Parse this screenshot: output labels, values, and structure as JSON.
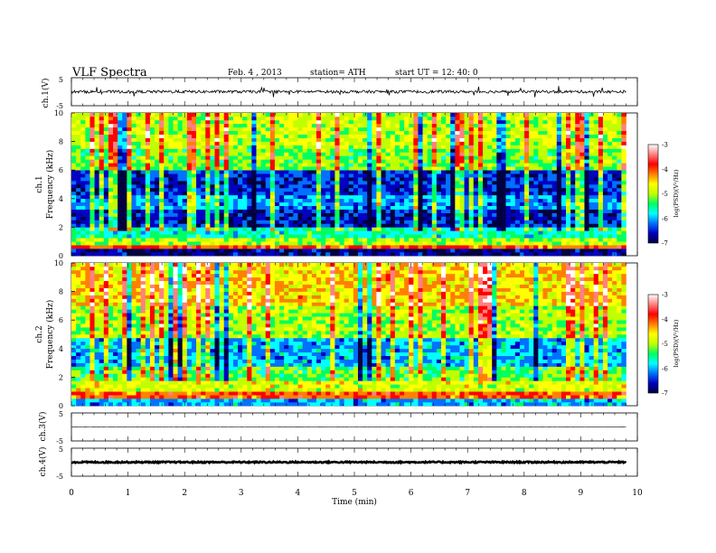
{
  "header": {
    "title": "VLF  Spectra",
    "date": "Feb. 4  , 2013",
    "station": "station= ATH",
    "start": "start  UT  =    12: 40: 0"
  },
  "chart_data": [
    {
      "type": "line",
      "panel": "ch1-waveform",
      "ylabel": "ch.1(V)",
      "ylim": [
        -5,
        5
      ],
      "yticks": [
        "5",
        "-5"
      ],
      "series": [
        {
          "mean": 0,
          "amplitude": 0.5,
          "color": "#000000"
        }
      ]
    },
    {
      "type": "heatmap",
      "panel": "ch1-spectrogram",
      "ylabel_top": "ch.1",
      "ylabel": "Frequency  (kHz)",
      "ylim": [
        0,
        10
      ],
      "yticks": [
        "0",
        "2",
        "4",
        "6",
        "8",
        "10"
      ],
      "colorbar": {
        "label": "log(PSD)(V²/Hz)",
        "range": [
          -7,
          -3
        ],
        "ticks": [
          "-3",
          "-4",
          "-5",
          "-6",
          "-7"
        ],
        "colors": [
          "#000040",
          "#0000c0",
          "#0070ff",
          "#00ffff",
          "#00ff60",
          "#c0ff00",
          "#ffff00",
          "#ff8000",
          "#ff0000",
          "#ff8080",
          "#ffffff"
        ]
      },
      "bands": [
        {
          "f": [
            0.0,
            0.3
          ],
          "logpsd": -6.8
        },
        {
          "f": [
            0.3,
            0.7
          ],
          "logpsd": -4.0
        },
        {
          "f": [
            0.7,
            1.2
          ],
          "logpsd": -5.0
        },
        {
          "f": [
            1.2,
            2.0
          ],
          "logpsd": -5.6
        },
        {
          "f": [
            2.0,
            3.2
          ],
          "logpsd": -6.6
        },
        {
          "f": [
            3.2,
            4.2
          ],
          "logpsd": -6.1
        },
        {
          "f": [
            4.2,
            5.9
          ],
          "logpsd": -6.5
        },
        {
          "f": [
            5.9,
            7.5
          ],
          "logpsd": -5.2
        },
        {
          "f": [
            7.5,
            10.0
          ],
          "logpsd": -4.9
        }
      ]
    },
    {
      "type": "heatmap",
      "panel": "ch2-spectrogram",
      "ylabel_top": "ch.2",
      "ylabel": "Frequency  (kHz)",
      "ylim": [
        0,
        10
      ],
      "yticks": [
        "0",
        "2",
        "4",
        "6",
        "8",
        "10"
      ],
      "colorbar": {
        "label": "log(PSD)(V²/Hz)",
        "range": [
          -7,
          -3
        ],
        "ticks": [
          "-3",
          "-4",
          "-5",
          "-6",
          "-7"
        ]
      },
      "bands": [
        {
          "f": [
            0.0,
            0.4
          ],
          "logpsd": -6.0
        },
        {
          "f": [
            0.4,
            0.8
          ],
          "logpsd": -4.0
        },
        {
          "f": [
            0.8,
            1.6
          ],
          "logpsd": -4.8
        },
        {
          "f": [
            1.6,
            2.6
          ],
          "logpsd": -5.3
        },
        {
          "f": [
            2.6,
            4.6
          ],
          "logpsd": -6.0
        },
        {
          "f": [
            4.6,
            7.0
          ],
          "logpsd": -5.0
        },
        {
          "f": [
            7.0,
            10.0
          ],
          "logpsd": -4.5
        }
      ]
    },
    {
      "type": "line",
      "panel": "ch3-waveform",
      "ylabel": "ch.3(V)",
      "ylim": [
        -5,
        5
      ],
      "yticks": [
        "5",
        "-5"
      ],
      "series": [
        {
          "mean": 0,
          "amplitude": 0.05,
          "color": "#000000"
        }
      ]
    },
    {
      "type": "line",
      "panel": "ch4-waveform",
      "ylabel": "ch.4(V)",
      "ylim": [
        -5,
        5
      ],
      "yticks": [
        "5",
        "-5"
      ],
      "series": [
        {
          "mean": 0,
          "amplitude": 0.25,
          "color": "#000000"
        }
      ]
    }
  ],
  "x_axis": {
    "label": "Time  (min)",
    "range": [
      0,
      10
    ],
    "data_end": 9.8,
    "ticks": [
      "0",
      "1",
      "2",
      "3",
      "4",
      "5",
      "6",
      "7",
      "8",
      "9",
      "10"
    ]
  }
}
